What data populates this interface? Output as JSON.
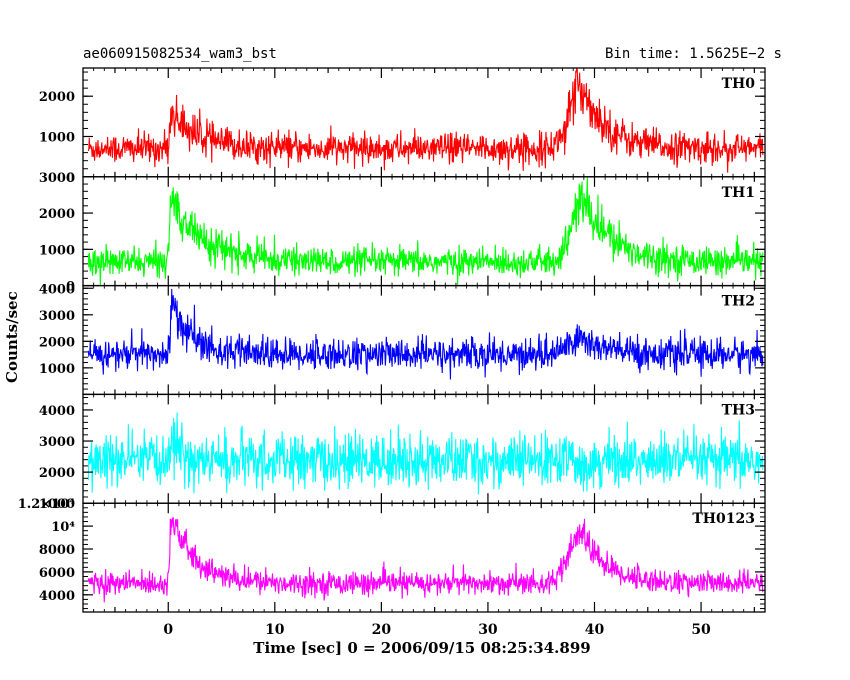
{
  "header": {
    "title": "ae060915082534_wam3_bst",
    "bin_time": "Bin time: 1.5625E−2 s"
  },
  "chart_data": {
    "type": "line",
    "title": "ae060915082534_wam3_bst",
    "xlabel": "Time [sec] 0 = 2006/09/15 08:25:34.899",
    "ylabel": "Counts/sec",
    "xlim": [
      -8,
      56
    ],
    "x_ticks": [
      0,
      10,
      20,
      30,
      40,
      50
    ],
    "x_range_data": [
      -7.5,
      55.8
    ],
    "grid": false,
    "panels": [
      {
        "name": "TH0",
        "color": "#ff0000",
        "ylim": [
          0,
          2700
        ],
        "y_ticks": [
          {
            "v": 0,
            "t": "0"
          },
          {
            "v": 1000,
            "t": "1000"
          },
          {
            "v": 2000,
            "t": "2000"
          }
        ],
        "baseline": 700,
        "noise": 190,
        "peaks": [
          {
            "t": 0.3,
            "amp": 900,
            "rise": 0.15,
            "decay": 2.5
          },
          {
            "t": 38.8,
            "amp": 1550,
            "rise": 1.1,
            "decay": 2.3
          }
        ]
      },
      {
        "name": "TH1",
        "color": "#00ff00",
        "ylim": [
          0,
          3000
        ],
        "y_ticks": [
          {
            "v": 0,
            "t": "0"
          },
          {
            "v": 1000,
            "t": "1000"
          },
          {
            "v": 2000,
            "t": "2000"
          },
          {
            "v": 3000,
            "t": "3000"
          }
        ],
        "baseline": 650,
        "noise": 190,
        "peaks": [
          {
            "t": 0.4,
            "amp": 1700,
            "rise": 0.25,
            "decay": 3.0
          },
          {
            "t": 38.9,
            "amp": 1700,
            "rise": 1.0,
            "decay": 2.8
          }
        ]
      },
      {
        "name": "TH2",
        "color": "#0000ff",
        "ylim": [
          0,
          4100
        ],
        "y_ticks": [
          {
            "v": 1000,
            "t": "1000"
          },
          {
            "v": 2000,
            "t": "2000"
          },
          {
            "v": 3000,
            "t": "3000"
          },
          {
            "v": 4000,
            "t": "4000"
          }
        ],
        "baseline": 1500,
        "noise": 300,
        "peaks": [
          {
            "t": 0.3,
            "amp": 2000,
            "rise": 0.1,
            "decay": 1.8
          },
          {
            "t": 38.7,
            "amp": 600,
            "rise": 1.2,
            "decay": 2.5
          }
        ]
      },
      {
        "name": "TH3",
        "color": "#00ffff",
        "ylim": [
          1000,
          4500
        ],
        "y_ticks": [
          {
            "v": 1000,
            "t": "1000"
          },
          {
            "v": 2000,
            "t": "2000"
          },
          {
            "v": 3000,
            "t": "3000"
          },
          {
            "v": 4000,
            "t": "4000"
          }
        ],
        "baseline": 2350,
        "noise": 420,
        "peaks": [
          {
            "t": 0.3,
            "amp": 900,
            "rise": 0.1,
            "decay": 0.8
          }
        ]
      },
      {
        "name": "TH0123",
        "color": "#ff00ff",
        "ylim": [
          2500,
          12000
        ],
        "y_ticks": [
          {
            "v": 4000,
            "t": "4000"
          },
          {
            "v": 6000,
            "t": "6000"
          },
          {
            "v": 8000,
            "t": "8000"
          },
          {
            "v": 10000,
            "t": "10⁴"
          },
          {
            "v": 12000,
            "t": "1.2×10⁴"
          }
        ],
        "baseline": 5000,
        "noise": 500,
        "peaks": [
          {
            "t": 0.3,
            "amp": 5800,
            "rise": 0.15,
            "decay": 2.2
          },
          {
            "t": 38.8,
            "amp": 4400,
            "rise": 1.1,
            "decay": 2.3
          }
        ]
      }
    ]
  }
}
